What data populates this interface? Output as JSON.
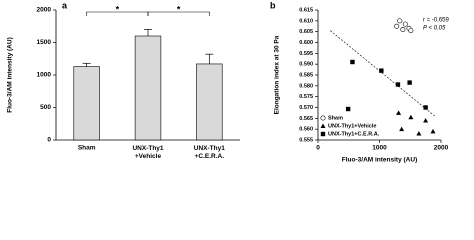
{
  "chart_data": [
    {
      "type": "bar",
      "panel_label": "a",
      "ylabel": "Fluo-3/AM intensity (AU)",
      "categories": [
        "Sham",
        "UNX-Thy1\n+Vehicle",
        "UNX-Thy1\n+C.E.R.A."
      ],
      "values": [
        1130,
        1600,
        1170
      ],
      "errors": [
        50,
        100,
        150
      ],
      "color": "#d9d9d9",
      "ylim": [
        0,
        2000
      ],
      "yticks": [
        0,
        500,
        1000,
        1500,
        2000
      ],
      "annotations": [
        {
          "text": "*",
          "from": 0,
          "to": 1
        },
        {
          "text": "*",
          "from": 1,
          "to": 2
        }
      ]
    },
    {
      "type": "scatter",
      "panel_label": "b",
      "xlabel": "Fluo-3/AM intensity (AU)",
      "ylabel": "Elongation index at 30 Pa",
      "xlim": [
        0,
        2000
      ],
      "xticks": [
        0,
        1000,
        2000
      ],
      "ylim": [
        0.555,
        0.615
      ],
      "yticks": [
        {
          "value": 0.555,
          "label": "0.555"
        },
        {
          "value": 0.56,
          "label": "0.560"
        },
        {
          "value": 0.565,
          "label": "0.565"
        },
        {
          "value": 0.57,
          "label": "0.570"
        },
        {
          "value": 0.575,
          "label": "0.575"
        },
        {
          "value": 0.58,
          "label": "0.580"
        },
        {
          "value": 0.585,
          "label": "0.585"
        },
        {
          "value": 0.59,
          "label": "0.590"
        },
        {
          "value": 0.595,
          "label": "0.595"
        },
        {
          "value": 0.6,
          "label": "0.600"
        },
        {
          "value": 0.605,
          "label": "0.605"
        },
        {
          "value": 0.61,
          "label": "0.610"
        },
        {
          "value": 0.615,
          "label": "0.615"
        }
      ],
      "legend": "lower left",
      "series": [
        {
          "name": "Sham",
          "marker": "circle-open",
          "color": "#000000",
          "x": [
            1330,
            1420,
            1280,
            1380,
            1480,
            1510
          ],
          "y": [
            0.61,
            0.6085,
            0.6075,
            0.606,
            0.6065,
            0.6055
          ]
        },
        {
          "name": "UNX-Thy1+Vehicle",
          "marker": "triangle",
          "color": "#000000",
          "x": [
            1310,
            1510,
            1750,
            1870,
            1640,
            1360
          ],
          "y": [
            0.5675,
            0.5655,
            0.564,
            0.559,
            0.558,
            0.56
          ]
        },
        {
          "name": "UNX-Thy1+C.E.R.A.",
          "marker": "square",
          "color": "#000000",
          "x": [
            560,
            1030,
            1300,
            490,
            1490,
            1750
          ],
          "y": [
            0.591,
            0.587,
            0.5806,
            0.5693,
            0.5815,
            0.57
          ]
        }
      ],
      "trend_line": {
        "x": [
          200,
          1900
        ],
        "y": [
          0.6055,
          0.566
        ]
      },
      "annotations": [
        "r = -0.659",
        "P < 0.05"
      ]
    }
  ]
}
